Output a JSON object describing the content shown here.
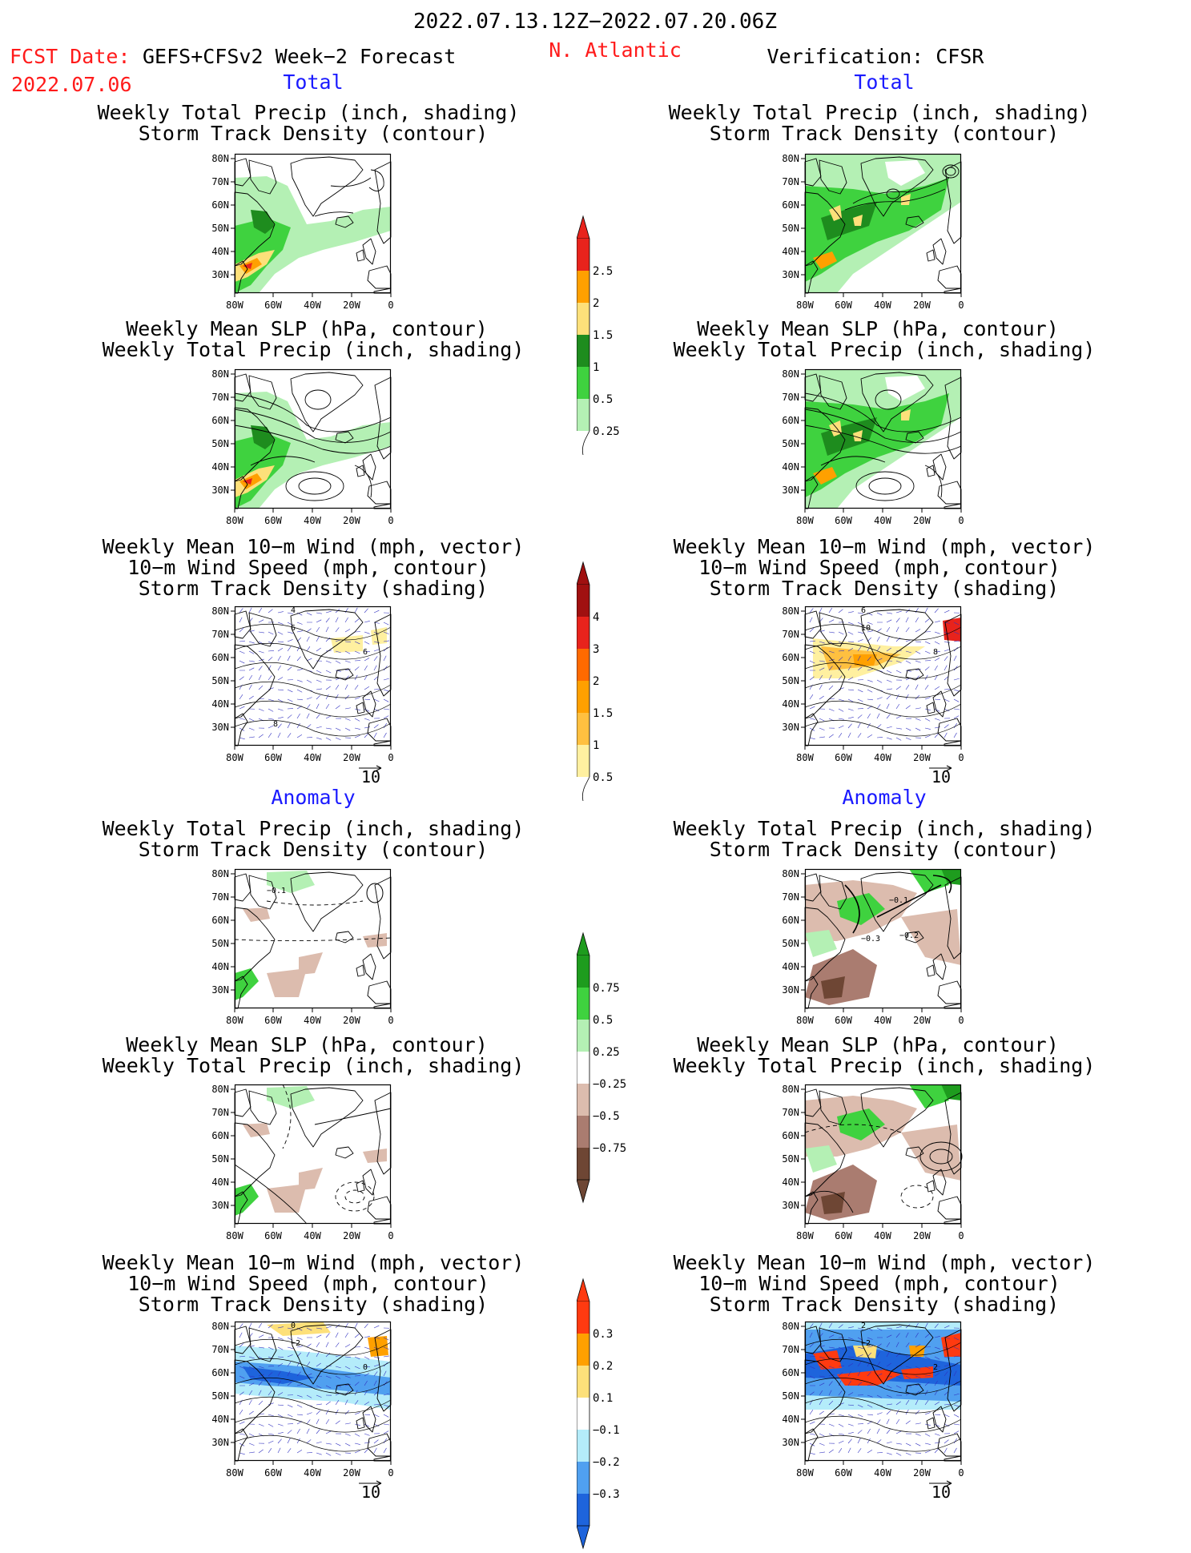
{
  "header": {
    "period": "2022.07.13.12Z−2022.07.20.06Z",
    "fcst_label": "FCST Date:",
    "fcst_model": "GEFS+CFSv2 Week−2 Forecast",
    "fcst_date": "2022.07.06",
    "region": "N. Atlantic",
    "verification": "Verification: CFSR"
  },
  "sections": {
    "total": "Total",
    "anomaly": "Anomaly"
  },
  "titles": {
    "precip_storm": [
      "Weekly Total Precip (inch, shading)",
      "Storm Track Density (contour)"
    ],
    "slp_precip": [
      "Weekly Mean SLP (hPa, contour)",
      "Weekly Total Precip (inch, shading)"
    ],
    "wind": [
      "Weekly Mean 10−m Wind (mph, vector)",
      "10−m Wind Speed (mph, contour)",
      "Storm Track Density (shading)"
    ]
  },
  "axes": {
    "lat_labels": [
      "80N",
      "70N",
      "60N",
      "50N",
      "40N",
      "30N"
    ],
    "lon_labels": [
      "80W",
      "60W",
      "40W",
      "20W",
      "0"
    ]
  },
  "vector_ref": "10",
  "contour_labels": {
    "fc_tot_wind": [
      "4",
      "6",
      "6",
      "8"
    ],
    "ob_tot_wind": [
      "6",
      "10",
      "8"
    ],
    "fc_anom_precip": [
      "−0.1"
    ],
    "ob_anom_precip": [
      "−0.1",
      "−0.3",
      "−0.2"
    ],
    "fc_anom_wind": [
      "0",
      "−2",
      "0"
    ],
    "ob_anom_wind": [
      "2",
      "−2",
      "2"
    ]
  },
  "colorbars": {
    "precip_total": {
      "labels": [
        "2.5",
        "2",
        "1.5",
        "1",
        "0.5",
        "0.25"
      ],
      "colors": [
        "#e8231c",
        "#ffa000",
        "#fde07a",
        "#1e8c1e",
        "#3fd23f",
        "#b4f0b4"
      ]
    },
    "storm_total": {
      "labels": [
        "4",
        "3",
        "2",
        "1.5",
        "1",
        "0.5"
      ],
      "colors": [
        "#a01010",
        "#e8231c",
        "#ff6a00",
        "#ffa000",
        "#ffc040",
        "#fff0a0"
      ]
    },
    "precip_anom": {
      "labels": [
        "0.75",
        "0.5",
        "0.25",
        "−0.25",
        "−0.5",
        "−0.75"
      ],
      "colors": [
        "#1e9c1e",
        "#3fd23f",
        "#b4f0b4",
        "#ffffff",
        "#dcbcae",
        "#aa7c70",
        "#6e4634"
      ]
    },
    "storm_anom": {
      "labels": [
        "0.3",
        "0.2",
        "0.1",
        "−0.1",
        "−0.2",
        "−0.3"
      ],
      "colors": [
        "#ff3a10",
        "#ffa000",
        "#fde07a",
        "#ffffff",
        "#b4ecfa",
        "#50a0f0",
        "#1e64dc"
      ]
    }
  }
}
